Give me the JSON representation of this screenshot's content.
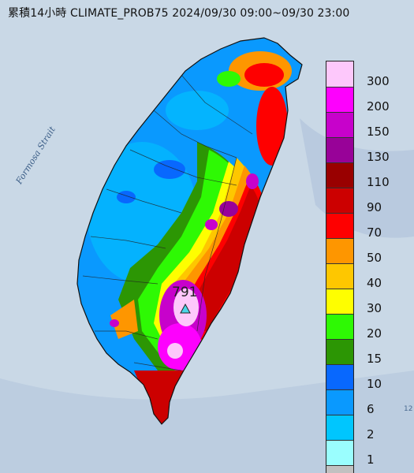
{
  "title": "累積14小時 CLIMATE_PROB75 2024/09/30 09:00~09/30 23:00",
  "sea_label": "Formosa Strait",
  "peak": {
    "value": "791"
  },
  "corner_text": "12",
  "legend": [
    {
      "label": "300",
      "color": "#fdc8fb"
    },
    {
      "label": "200",
      "color": "#fd01fd"
    },
    {
      "label": "150",
      "color": "#c702cb"
    },
    {
      "label": "130",
      "color": "#980298"
    },
    {
      "label": "110",
      "color": "#990000"
    },
    {
      "label": "90",
      "color": "#cc0000"
    },
    {
      "label": "70",
      "color": "#fe0000"
    },
    {
      "label": "50",
      "color": "#fe9600"
    },
    {
      "label": "40",
      "color": "#fec700"
    },
    {
      "label": "30",
      "color": "#fefe00"
    },
    {
      "label": "20",
      "color": "#2ef904"
    },
    {
      "label": "15",
      "color": "#2c9604"
    },
    {
      "label": "10",
      "color": "#0868fe"
    },
    {
      "label": "6",
      "color": "#0a99fe"
    },
    {
      "label": "2",
      "color": "#00c6fe"
    },
    {
      "label": "1",
      "color": "#9afefe"
    },
    {
      "label": "",
      "color": "#c1c1c1"
    }
  ]
}
